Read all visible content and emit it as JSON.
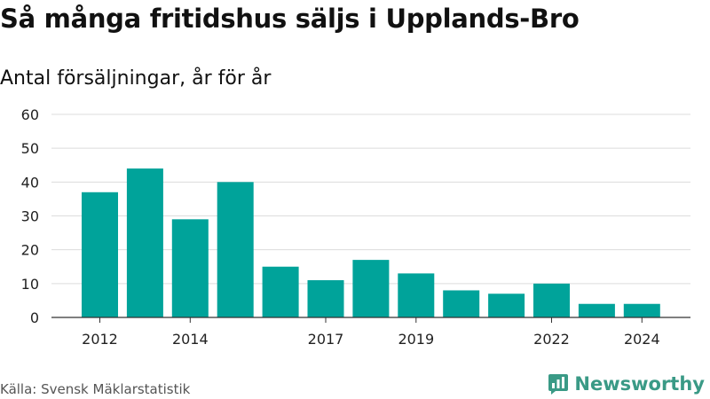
{
  "chart_data": {
    "type": "bar",
    "title": "Så många fritidshus säljs i Upplands-Bro",
    "subtitle": "Antal försäljningar, år för år",
    "categories": [
      "2012",
      "2013",
      "2014",
      "2015",
      "2016",
      "2017",
      "2018",
      "2019",
      "2020",
      "2021",
      "2022",
      "2023",
      "2024"
    ],
    "values": [
      37,
      44,
      29,
      40,
      15,
      11,
      17,
      13,
      8,
      7,
      10,
      4,
      4
    ],
    "x_tick_labels": [
      "2012",
      "2014",
      "2017",
      "2019",
      "2022",
      "2024"
    ],
    "y_ticks": [
      0,
      10,
      20,
      30,
      40,
      50,
      60
    ],
    "ylim": [
      0,
      60
    ],
    "xlabel": "",
    "ylabel": "",
    "grid": true,
    "bar_color": "#00a39a"
  },
  "footer": {
    "source": "Källa: Svensk Mäklarstatistik",
    "brand": "Newsworthy",
    "brand_icon": "newsworthy-logo-icon"
  }
}
